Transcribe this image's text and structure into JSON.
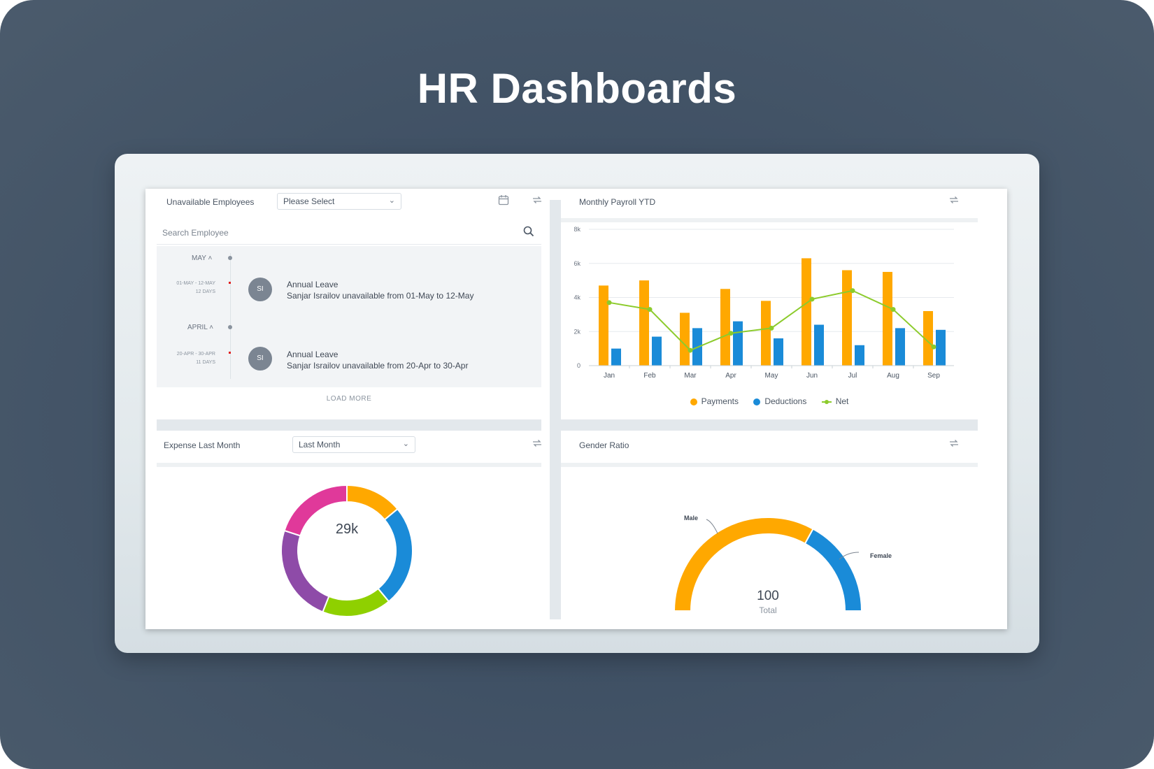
{
  "page": {
    "headline": "HR Dashboards"
  },
  "unavailable": {
    "title": "Unavailable Employees",
    "select_value": "Please Select",
    "search_placeholder": "Search Employee",
    "groups": [
      {
        "month": "MAY",
        "range": "01-MAY - 12-MAY",
        "days": "12 DAYS",
        "initials": "SI",
        "type": "Annual Leave",
        "detail": "Sanjar Israilov unavailable from 01-May to 12-May"
      },
      {
        "month": "APRIL",
        "range": "20-APR - 30-APR",
        "days": "11 DAYS",
        "initials": "SI",
        "type": "Annual Leave",
        "detail": "Sanjar Israilov unavailable from 20-Apr to 30-Apr"
      }
    ],
    "load_more": "LOAD MORE"
  },
  "payroll": {
    "title": "Monthly Payroll YTD",
    "legend": {
      "payments": "Payments",
      "deductions": "Deductions",
      "net": "Net"
    }
  },
  "expense": {
    "title": "Expense Last Month",
    "select_value": "Last Month",
    "center_value": "29k"
  },
  "gender": {
    "title": "Gender Ratio",
    "male_label": "Male",
    "female_label": "Female",
    "total_value": "100",
    "total_label": "Total"
  },
  "colors": {
    "orange": "#FFA800",
    "blue": "#1A8BD8",
    "green": "#8CCB2C",
    "pink": "#E0399A",
    "purple": "#8E4BA8",
    "lime": "#8FD000"
  },
  "icons": {
    "calendar": "calendar-icon",
    "refresh": "refresh-icon",
    "search": "search-icon",
    "chevron": "chevron-down-icon"
  },
  "chart_data": [
    {
      "type": "bar",
      "title": "Monthly Payroll YTD",
      "categories": [
        "Jan",
        "Feb",
        "Mar",
        "Apr",
        "May",
        "Jun",
        "Jul",
        "Aug",
        "Sep"
      ],
      "series": [
        {
          "name": "Payments",
          "kind": "bar",
          "color": "#FFA800",
          "values": [
            4700,
            5000,
            3100,
            4500,
            3800,
            6300,
            5600,
            5500,
            3200
          ]
        },
        {
          "name": "Deductions",
          "kind": "bar",
          "color": "#1A8BD8",
          "values": [
            1000,
            1700,
            2200,
            2600,
            1600,
            2400,
            1200,
            2200,
            2100
          ]
        },
        {
          "name": "Net",
          "kind": "line",
          "color": "#8CCB2C",
          "values": [
            3700,
            3300,
            900,
            1900,
            2200,
            3900,
            4400,
            3300,
            1100
          ]
        }
      ],
      "ylim": [
        0,
        8000
      ],
      "yticks": [
        "0",
        "2k",
        "4k",
        "6k",
        "8k"
      ],
      "legend": "bottom-center",
      "grid": true
    },
    {
      "type": "pie",
      "title": "Expense Last Month",
      "center_label": "29k",
      "slices": [
        {
          "color": "#FFA800",
          "value": 14
        },
        {
          "color": "#1A8BD8",
          "value": 25
        },
        {
          "color": "#8FD000",
          "value": 17
        },
        {
          "color": "#8E4BA8",
          "value": 24
        },
        {
          "color": "#E0399A",
          "value": 20
        }
      ]
    },
    {
      "type": "pie",
      "title": "Gender Ratio",
      "total": "100",
      "slices": [
        {
          "name": "Male",
          "color": "#FFA800",
          "value": 66
        },
        {
          "name": "Female",
          "color": "#1A8BD8",
          "value": 34
        }
      ]
    }
  ]
}
